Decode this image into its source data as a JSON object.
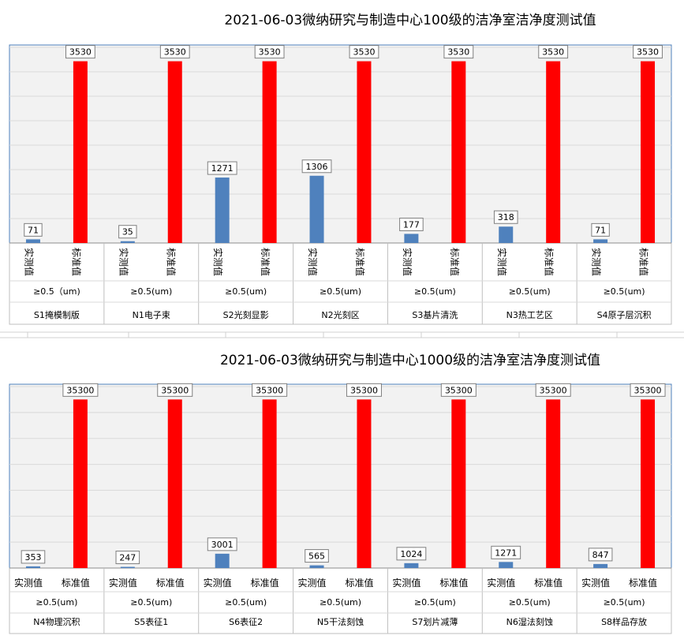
{
  "chart_data": [
    {
      "type": "bar",
      "title": "2021-06-03微纳研究与制造中心100级的洁净室洁净度测试值",
      "series_labels": [
        "实测值",
        "标准值"
      ],
      "colors": [
        "#4f81bd",
        "#ff0000"
      ],
      "ylim": [
        0,
        3800
      ],
      "grid": true,
      "categories": [
        {
          "name": "S1掩模制版",
          "size": "≥0.5（um)",
          "measured": 71,
          "standard": 3530
        },
        {
          "name": "N1电子束",
          "size": "≥0.5(um)",
          "measured": 35,
          "standard": 3530
        },
        {
          "name": "S2光刻显影",
          "size": "≥0.5(um)",
          "measured": 1271,
          "standard": 3530
        },
        {
          "name": "N2光刻区",
          "size": "≥0.5(um)",
          "measured": 1306,
          "standard": 3530
        },
        {
          "name": "S3基片清洗",
          "size": "≥0.5(um)",
          "measured": 177,
          "standard": 3530
        },
        {
          "name": "N3热工艺区",
          "size": "≥0.5(um)",
          "measured": 318,
          "standard": 3530
        },
        {
          "name": "S4原子层沉积",
          "size": "≥0.5(um)",
          "measured": 71,
          "standard": 3530
        }
      ]
    },
    {
      "type": "bar",
      "title": "2021-06-03微纳研究与制造中心1000级的洁净室洁净度测试值",
      "series_labels": [
        "实测值",
        "标准值"
      ],
      "colors": [
        "#4f81bd",
        "#ff0000"
      ],
      "ylim": [
        0,
        38000
      ],
      "grid": true,
      "categories": [
        {
          "name": "N4物理沉积",
          "size": "≥0.5(um)",
          "measured": 353,
          "standard": 35300
        },
        {
          "name": "S5表征1",
          "size": "≥0.5(um)",
          "measured": 247,
          "standard": 35300
        },
        {
          "name": "S6表征2",
          "size": "≥0.5(um)",
          "measured": 3001,
          "standard": 35300
        },
        {
          "name": "N5干法刻蚀",
          "size": "≥0.5(um)",
          "measured": 565,
          "standard": 35300
        },
        {
          "name": "S7划片减薄",
          "size": "≥0.5(um)",
          "measured": 1024,
          "standard": 35300
        },
        {
          "name": "N6湿法刻蚀",
          "size": "≥0.5(um)",
          "measured": 1271,
          "standard": 35300
        },
        {
          "name": "S8样品存放",
          "size": "≥0.5(um)",
          "measured": 847,
          "standard": 35300
        }
      ]
    }
  ]
}
